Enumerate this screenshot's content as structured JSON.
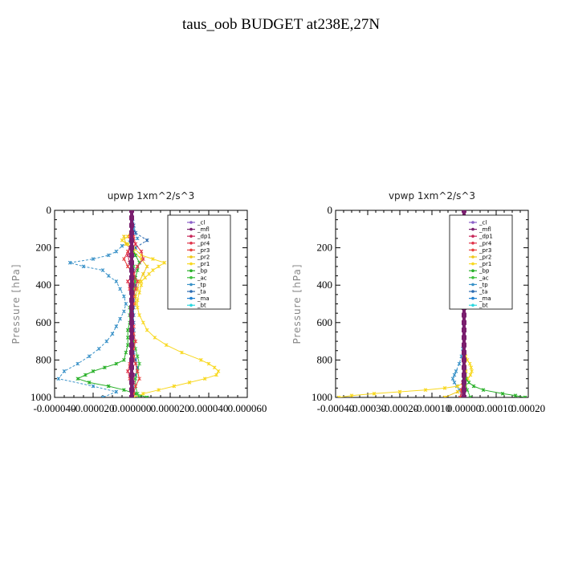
{
  "title": "taus_oob  BUDGET at238E,27N",
  "colors": {
    "_cl": "#8a5fc8",
    "_mfl": "#7a1f6e",
    "_dp1": "#c8285a",
    "_pr4": "#e0334a",
    "_pr3": "#e84040",
    "_pr2": "#f0c818",
    "_pr1": "#f8d820",
    "_bp": "#28b028",
    "_ac": "#3cc03c",
    "_tp": "#3a92c8",
    "_ta": "#2a6ab0",
    "_ma": "#2080d0",
    "_bt": "#28d8e0"
  },
  "chart_data": [
    {
      "type": "line",
      "title": "upwp   1xm^2/s^3",
      "ylabel": "Pressure [hPa]",
      "xlabel": "",
      "ylim": [
        1000,
        0
      ],
      "yticks": [
        "0",
        "200",
        "400",
        "600",
        "800",
        "1000"
      ],
      "xlim": [
        -4e-05,
        6e-05
      ],
      "xticks": [
        "-0.000040",
        "-0.000020",
        "0.000000",
        "0.000020",
        "0.000040",
        "0.000060"
      ],
      "legend": [
        "_cl",
        "_mfl",
        "_dp1",
        "_pr4",
        "_pr3",
        "_pr2",
        "_pr1",
        "_bp",
        "_ac",
        "_tp",
        "_ta",
        "_ma",
        "_bt"
      ],
      "legend_position": "top-right",
      "series": [
        {
          "name": "_tp",
          "y": [
            60,
            100,
            150,
            170,
            190,
            220,
            240,
            260,
            280,
            300,
            320,
            350,
            380,
            420,
            460,
            500,
            540,
            580,
            620,
            660,
            700,
            740,
            780,
            820,
            860,
            900,
            940,
            970,
            1000
          ],
          "x": [
            5e-07,
            1e-06,
            3e-06,
            -1e-06,
            -5e-06,
            -8e-06,
            -1.2e-05,
            -2e-05,
            -3.2e-05,
            -2.5e-05,
            -1.5e-05,
            -1.2e-05,
            -8e-06,
            -6e-06,
            -4e-06,
            -3e-06,
            -4e-06,
            -6e-06,
            -8e-06,
            -1e-05,
            -1.3e-05,
            -1.7e-05,
            -2.2e-05,
            -2.8e-05,
            -3.5e-05,
            -3.8e-05,
            -2e-05,
            -8e-06,
            -1.5e-05
          ]
        },
        {
          "name": "_ta",
          "y": [
            80,
            120,
            160,
            200,
            240,
            280,
            320,
            360,
            400,
            440,
            480,
            520,
            560,
            600,
            640,
            680,
            720,
            760,
            800,
            840,
            880,
            920,
            960,
            1000
          ],
          "x": [
            1e-06,
            2e-06,
            8e-06,
            2e-06,
            1e-06,
            -1e-06,
            1e-06,
            1e-06,
            2e-06,
            1e-06,
            1e-06,
            1e-06,
            1e-06,
            1e-06,
            1e-06,
            1e-06,
            1e-06,
            1e-06,
            2e-06,
            3e-06,
            2e-06,
            1e-06,
            1e-06,
            0
          ]
        },
        {
          "name": "_pr1",
          "y": [
            100,
            140,
            160,
            180,
            200,
            240,
            260,
            280,
            300,
            320,
            340,
            360,
            380,
            400,
            440,
            480,
            520,
            560,
            600,
            640,
            680,
            720,
            760,
            800,
            820,
            840,
            860,
            880,
            900,
            920,
            940,
            960,
            980,
            1000
          ],
          "x": [
            0,
            -2e-06,
            -5e-06,
            -2e-06,
            1e-06,
            5e-06,
            1.1e-05,
            1.7e-05,
            1.4e-05,
            1.1e-05,
            9e-06,
            7e-06,
            5e-06,
            5e-06,
            4e-06,
            3e-06,
            3e-06,
            4e-06,
            6e-06,
            8e-06,
            1.2e-05,
            1.8e-05,
            2.6e-05,
            3.6e-05,
            4e-05,
            4.3e-05,
            4.5e-05,
            4.4e-05,
            3.8e-05,
            3e-05,
            2.2e-05,
            1.4e-05,
            6e-06,
            1e-06
          ]
        },
        {
          "name": "_pr2",
          "y": [
            140,
            180,
            220,
            260,
            300,
            340,
            380,
            420,
            460,
            500
          ],
          "x": [
            -4e-06,
            -3e-06,
            1e-06,
            5e-06,
            8e-06,
            6e-06,
            4e-06,
            3e-06,
            2e-06,
            2e-06
          ]
        },
        {
          "name": "_bp",
          "y": [
            200,
            240,
            280,
            320,
            360,
            400,
            440,
            480,
            520,
            560,
            600,
            640,
            680,
            720,
            760,
            800,
            820,
            840,
            860,
            880,
            900,
            920,
            940,
            960,
            980,
            1000
          ],
          "x": [
            0,
            2e-06,
            4e-06,
            3e-06,
            2e-06,
            1e-06,
            1e-06,
            0,
            -1e-06,
            -1e-06,
            -1e-06,
            -2e-06,
            -2e-06,
            -2e-06,
            -3e-06,
            -4e-06,
            -8e-06,
            -1.4e-05,
            -2e-05,
            -2.4e-05,
            -2.8e-05,
            -2.2e-05,
            -1.2e-05,
            -4e-06,
            2e-06,
            8e-06
          ]
        },
        {
          "name": "_ac",
          "y": [
            300,
            340,
            380,
            420,
            460,
            500,
            540,
            580,
            620,
            660,
            700,
            740,
            780,
            820,
            860,
            900,
            940,
            980,
            1000
          ],
          "x": [
            1e-06,
            1e-06,
            2e-06,
            1e-06,
            1e-06,
            0,
            0,
            0,
            0,
            1e-06,
            1e-06,
            2e-06,
            3e-06,
            4e-06,
            3e-06,
            2e-06,
            2e-06,
            3e-06,
            4e-06
          ]
        },
        {
          "name": "_pr3",
          "y": [
            140,
            180,
            220,
            260,
            300,
            340,
            380,
            420,
            460,
            500,
            540,
            580,
            620,
            660,
            700,
            740,
            780,
            820,
            860,
            900,
            940,
            980,
            1000
          ],
          "x": [
            1e-06,
            2e-06,
            -2e-06,
            -4e-06,
            -2e-06,
            1e-06,
            3e-06,
            2e-06,
            1e-06,
            1e-06,
            0,
            0,
            1e-06,
            1e-06,
            2e-06,
            1e-06,
            1e-06,
            2e-06,
            3e-06,
            4e-06,
            2e-06,
            1e-06,
            0
          ]
        },
        {
          "name": "_pr4",
          "y": [
            140,
            180,
            220,
            260,
            300,
            340,
            380,
            420,
            460,
            500,
            540,
            580,
            620,
            660,
            700,
            740,
            780,
            820,
            860,
            900,
            940,
            980,
            1000
          ],
          "x": [
            -1e-06,
            2e-06,
            5e-06,
            6e-06,
            3e-06,
            1e-06,
            -2e-06,
            -1e-06,
            0,
            0,
            0,
            0,
            0,
            0,
            0,
            0,
            0,
            -1e-06,
            -2e-06,
            -1e-06,
            0,
            0,
            0
          ]
        },
        {
          "name": "_dp1",
          "y": [
            120,
            160,
            200,
            240,
            280,
            320,
            360,
            400,
            440,
            480,
            520,
            560,
            600,
            640,
            680,
            720,
            760,
            800,
            840,
            880,
            920,
            960,
            1000
          ],
          "x": [
            0,
            0,
            -1e-06,
            -2e-06,
            -1e-06,
            0,
            1e-06,
            1e-06,
            0,
            0,
            0,
            0,
            0,
            0,
            0,
            0,
            0,
            0,
            0,
            1e-06,
            1e-06,
            0,
            0
          ]
        },
        {
          "name": "_ma",
          "y": [
            0,
            100,
            200,
            300,
            400,
            500,
            600,
            700,
            800,
            900,
            1000
          ],
          "x": [
            0,
            0,
            0,
            0,
            0,
            0,
            0,
            0,
            0,
            0,
            0
          ]
        },
        {
          "name": "_cl",
          "y": [
            0,
            100,
            200,
            300,
            400,
            500,
            600,
            700,
            800,
            900,
            1000
          ],
          "x": [
            0,
            0,
            0,
            0,
            0,
            0,
            0,
            0,
            0,
            0,
            0
          ]
        },
        {
          "name": "_mfl",
          "y": [
            0,
            40,
            80,
            120,
            160,
            200,
            240,
            280,
            320,
            360,
            400,
            440,
            480,
            520,
            560,
            600,
            640,
            680,
            720,
            760,
            800,
            840,
            880,
            920,
            960,
            1000
          ],
          "x": [
            0,
            0,
            0,
            0,
            0,
            0,
            0,
            0,
            0,
            0,
            0,
            0,
            0,
            0,
            0,
            0,
            0,
            0,
            0,
            0,
            0,
            0,
            0,
            0,
            0,
            0
          ]
        }
      ]
    },
    {
      "type": "line",
      "title": "vpwp   1xm^2/s^3",
      "ylabel": "Pressure [hPa]",
      "xlabel": "",
      "ylim": [
        1000,
        0
      ],
      "yticks": [
        "0",
        "200",
        "400",
        "600",
        "800",
        "1000"
      ],
      "xlim": [
        -0.0004,
        0.0002
      ],
      "xticks": [
        "-0.00040",
        "-0.00030",
        "-0.00020",
        "-0.00010",
        "0.00000",
        "0.00010",
        "0.00020"
      ],
      "legend": [
        "_cl",
        "_mfl",
        "_dp1",
        "_pr4",
        "_pr3",
        "_pr2",
        "_pr1",
        "_bp",
        "_ac",
        "_tp",
        "_ta",
        "_ma",
        "_bt"
      ],
      "legend_position": "top-right",
      "series": [
        {
          "name": "_tp",
          "y": [
            200,
            230,
            260,
            290,
            320,
            350,
            380,
            420,
            460,
            500,
            560,
            620,
            680,
            740,
            780,
            820,
            860,
            880,
            900,
            920,
            940,
            960,
            980,
            1000
          ],
          "x": [
            -5e-06,
            -1.2e-05,
            -2.5e-05,
            -3.2e-05,
            -2.8e-05,
            -2e-05,
            -1.2e-05,
            -6e-06,
            -3e-06,
            -2e-06,
            -1e-06,
            -1e-06,
            -2e-06,
            -4e-06,
            -8e-06,
            -1.5e-05,
            -2.5e-05,
            -3e-05,
            -3.5e-05,
            -3e-05,
            -2.2e-05,
            -1.5e-05,
            -8e-06,
            -4e-06
          ]
        },
        {
          "name": "_pr1",
          "y": [
            780,
            800,
            820,
            840,
            860,
            880,
            900,
            920,
            940,
            950,
            960,
            970,
            980,
            990,
            1000
          ],
          "x": [
            5e-06,
            1e-05,
            1.8e-05,
            2.2e-05,
            2.4e-05,
            2e-05,
            1.2e-05,
            2e-06,
            -2e-05,
            -6e-05,
            -0.00012,
            -0.0002,
            -0.00028,
            -0.00035,
            -0.00039
          ]
        },
        {
          "name": "_pr2",
          "y": [
            820,
            860,
            900,
            940,
            970,
            1000
          ],
          "x": [
            2e-06,
            6e-06,
            8e-06,
            4e-06,
            -2e-05,
            -6e-05
          ]
        },
        {
          "name": "_bp",
          "y": [
            860,
            880,
            900,
            920,
            940,
            960,
            980,
            990,
            1000
          ],
          "x": [
            1e-06,
            3e-06,
            6e-06,
            1.5e-05,
            3e-05,
            6e-05,
            0.00012,
            0.00016,
            0.00019
          ]
        },
        {
          "name": "_ac",
          "y": [
            880,
            920,
            960,
            1000
          ],
          "x": [
            1e-06,
            4e-06,
            1e-05,
            2e-05
          ]
        },
        {
          "name": "_ta",
          "y": [
            200,
            300,
            400,
            500,
            600,
            700,
            800,
            900,
            1000
          ],
          "x": [
            0,
            1e-06,
            2e-06,
            1e-06,
            0,
            0,
            -1e-06,
            -2e-06,
            -1e-06
          ]
        },
        {
          "name": "_pr3",
          "y": [
            880,
            920,
            960,
            1000
          ],
          "x": [
            -2e-06,
            -4e-06,
            -8e-06,
            -1.2e-05
          ]
        },
        {
          "name": "_pr4",
          "y": [
            880,
            920,
            960,
            1000
          ],
          "x": [
            -1e-06,
            -3e-06,
            -6e-06,
            -4e-06
          ]
        },
        {
          "name": "_dp1",
          "y": [
            900,
            940,
            980,
            1000
          ],
          "x": [
            0,
            -2e-06,
            -4e-06,
            -3e-06
          ]
        },
        {
          "name": "_cl",
          "y": [
            0,
            100,
            200,
            300,
            400,
            500,
            600,
            700,
            800,
            900,
            1000
          ],
          "x": [
            0,
            0,
            0,
            0,
            0,
            0,
            0,
            0,
            0,
            0,
            0
          ]
        },
        {
          "name": "_mfl",
          "y": [
            0,
            40,
            80,
            120,
            160,
            200,
            240,
            280,
            320,
            360,
            400,
            440,
            480,
            520,
            560,
            600,
            640,
            680,
            720,
            760,
            800,
            840,
            880,
            920,
            960,
            1000
          ],
          "x": [
            0,
            0,
            0,
            0,
            0,
            0,
            0,
            0,
            0,
            0,
            0,
            0,
            0,
            0,
            0,
            0,
            0,
            0,
            0,
            0,
            0,
            0,
            0,
            0,
            0,
            0
          ]
        }
      ]
    }
  ]
}
